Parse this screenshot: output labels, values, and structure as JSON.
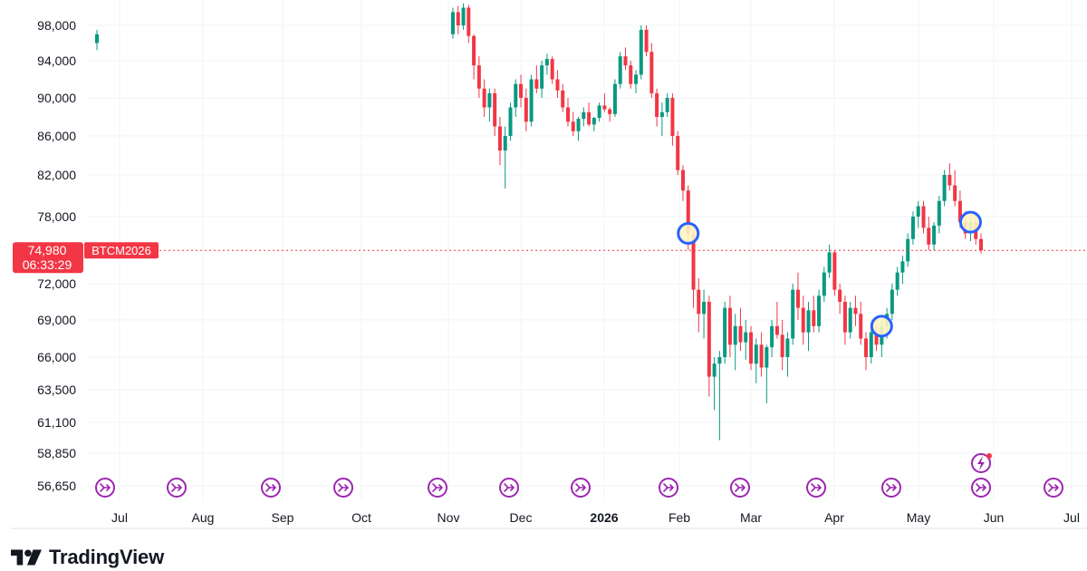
{
  "brand": {
    "name": "TradingView"
  },
  "chart_data": {
    "type": "candlestick",
    "symbol": "BTCM2026",
    "last_price": "74,980",
    "countdown": "06:33:29",
    "y_ticks": [
      "98,000",
      "94,000",
      "90,000",
      "86,000",
      "82,000",
      "78,000",
      "72,000",
      "69,000",
      "66,000",
      "63,500",
      "61,100",
      "58,850",
      "56,650"
    ],
    "x_ticks": [
      "Jul",
      "Aug",
      "Sep",
      "Oct",
      "Nov",
      "Dec",
      "2026",
      "Feb",
      "Mar",
      "Apr",
      "May",
      "Jun",
      "Jul"
    ],
    "ohlc": [
      [
        96000,
        97500,
        95200,
        97000
      ],
      [
        97000,
        100000,
        96500,
        99500
      ],
      [
        99500,
        100200,
        97000,
        98000
      ],
      [
        98000,
        100500,
        97500,
        100000
      ],
      [
        100000,
        100300,
        96000,
        96800
      ],
      [
        96800,
        97000,
        92000,
        93500
      ],
      [
        93500,
        94500,
        90000,
        91000
      ],
      [
        91000,
        92000,
        88000,
        89000
      ],
      [
        89000,
        91000,
        87500,
        90500
      ],
      [
        90500,
        91000,
        86000,
        87000
      ],
      [
        87000,
        88000,
        83000,
        84500
      ],
      [
        84500,
        87000,
        80700,
        86000
      ],
      [
        86000,
        89500,
        85500,
        89000
      ],
      [
        89000,
        92000,
        88000,
        91500
      ],
      [
        91500,
        92500,
        89000,
        90000
      ],
      [
        90000,
        91000,
        86500,
        87500
      ],
      [
        87500,
        92500,
        87000,
        92000
      ],
      [
        92000,
        93500,
        90500,
        91000
      ],
      [
        91000,
        94000,
        90000,
        93500
      ],
      [
        93500,
        94800,
        92500,
        94200
      ],
      [
        94200,
        94500,
        91500,
        92000
      ],
      [
        92000,
        93000,
        90000,
        90800
      ],
      [
        90800,
        91500,
        88500,
        89000
      ],
      [
        89000,
        90000,
        87000,
        87500
      ],
      [
        87500,
        88500,
        86000,
        86500
      ],
      [
        86500,
        88000,
        85500,
        87800
      ],
      [
        87800,
        89000,
        87000,
        88500
      ],
      [
        88500,
        89500,
        87000,
        87200
      ],
      [
        87200,
        88000,
        86500,
        87900
      ],
      [
        87900,
        89500,
        87500,
        89200
      ],
      [
        89200,
        90500,
        88500,
        88800
      ],
      [
        88800,
        89000,
        87500,
        88300
      ],
      [
        88300,
        92000,
        88000,
        91500
      ],
      [
        91500,
        95000,
        91000,
        94500
      ],
      [
        94500,
        95500,
        93000,
        93500
      ],
      [
        93500,
        94000,
        91000,
        91500
      ],
      [
        91500,
        93000,
        90500,
        92500
      ],
      [
        92500,
        98000,
        92000,
        97500
      ],
      [
        97500,
        98000,
        94500,
        95000
      ],
      [
        95000,
        96000,
        90000,
        90500
      ],
      [
        90500,
        91000,
        87000,
        88000
      ],
      [
        88000,
        89500,
        86000,
        88500
      ],
      [
        88500,
        90500,
        88000,
        90000
      ],
      [
        90000,
        90500,
        85000,
        86000
      ],
      [
        86000,
        86500,
        82000,
        82500
      ],
      [
        82500,
        83000,
        79500,
        80500
      ],
      [
        80500,
        81000,
        75000,
        76500
      ],
      [
        76500,
        77000,
        70000,
        71500
      ],
      [
        71500,
        72500,
        68000,
        69500
      ],
      [
        69500,
        71500,
        67500,
        70500
      ],
      [
        70500,
        71000,
        63000,
        64500
      ],
      [
        64500,
        66000,
        62000,
        65500
      ],
      [
        65500,
        66500,
        59800,
        66000
      ],
      [
        66000,
        70500,
        65500,
        70000
      ],
      [
        70000,
        71000,
        66000,
        67000
      ],
      [
        67000,
        69500,
        65000,
        68500
      ],
      [
        68500,
        70000,
        66500,
        67200
      ],
      [
        67200,
        69000,
        65800,
        68000
      ],
      [
        68000,
        68500,
        65000,
        65500
      ],
      [
        65500,
        67500,
        64000,
        67000
      ],
      [
        67000,
        68000,
        64500,
        65200
      ],
      [
        65200,
        67000,
        62500,
        66800
      ],
      [
        66800,
        69000,
        66000,
        68500
      ],
      [
        68500,
        70500,
        67500,
        67800
      ],
      [
        67800,
        69000,
        65000,
        66000
      ],
      [
        66000,
        68000,
        64500,
        67500
      ],
      [
        67500,
        72000,
        67000,
        71500
      ],
      [
        71500,
        73000,
        69000,
        70000
      ],
      [
        70000,
        71000,
        67000,
        68000
      ],
      [
        68000,
        70500,
        66500,
        69800
      ],
      [
        69800,
        71000,
        68000,
        68500
      ],
      [
        68500,
        71500,
        68000,
        71000
      ],
      [
        71000,
        73500,
        70500,
        73000
      ],
      [
        73000,
        75500,
        72500,
        74800
      ],
      [
        74800,
        75000,
        71000,
        71500
      ],
      [
        71500,
        72000,
        69500,
        70500
      ],
      [
        70500,
        71000,
        67000,
        68000
      ],
      [
        68000,
        70500,
        67500,
        70000
      ],
      [
        70000,
        71000,
        68500,
        69500
      ],
      [
        69500,
        70500,
        67000,
        67500
      ],
      [
        67500,
        68000,
        65000,
        66000
      ],
      [
        66000,
        68500,
        65500,
        68000
      ],
      [
        68000,
        68500,
        66500,
        67000
      ],
      [
        67000,
        69000,
        66000,
        68500
      ],
      [
        68500,
        70000,
        67500,
        69500
      ],
      [
        69500,
        72000,
        69000,
        71500
      ],
      [
        71500,
        73500,
        71000,
        73000
      ],
      [
        73000,
        74500,
        72000,
        74000
      ],
      [
        74000,
        76500,
        73500,
        76000
      ],
      [
        76000,
        78500,
        75500,
        78000
      ],
      [
        78000,
        79500,
        77000,
        79000
      ],
      [
        79000,
        79500,
        76500,
        77000
      ],
      [
        77000,
        78000,
        75000,
        75500
      ],
      [
        75500,
        77500,
        75000,
        77200
      ],
      [
        77200,
        80000,
        76500,
        79500
      ],
      [
        79500,
        82500,
        79000,
        82000
      ],
      [
        82000,
        83200,
        80500,
        81000
      ],
      [
        81000,
        82500,
        79000,
        79500
      ],
      [
        79500,
        80500,
        77000,
        77500
      ],
      [
        77500,
        78500,
        76000,
        76500
      ],
      [
        76500,
        77800,
        75800,
        77500
      ],
      [
        77500,
        78000,
        75500,
        76000
      ],
      [
        76000,
        76500,
        74700,
        74980
      ]
    ]
  },
  "markers": [
    {
      "label": "circle",
      "date_index": 46
    },
    {
      "label": "circle",
      "date_index": 83
    },
    {
      "label": "circle",
      "date_index": 100
    }
  ]
}
